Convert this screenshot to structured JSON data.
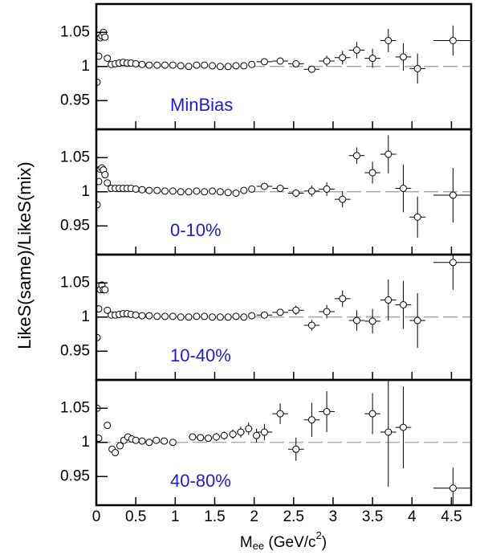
{
  "y_label": "LikeS(same)/LikeS(mix)",
  "x_label_parts": [
    "M",
    "ee",
    " (GeV/c",
    "2",
    ")"
  ],
  "chart_data": [
    {
      "type": "scatter",
      "label": "MinBias",
      "color": "#000000",
      "label_color": "#1a1ae6",
      "xlim": [
        0,
        4.75
      ],
      "ylim": [
        0.908,
        1.0915
      ],
      "yticks": [
        0.95,
        1,
        1.05
      ],
      "xticks": [
        0,
        0.5,
        1,
        1.5,
        2,
        2.5,
        3,
        3.5,
        4,
        4.5
      ],
      "xtick_labels": false,
      "reference_line": 1,
      "x": [
        0.01,
        0.03,
        0.05,
        0.07,
        0.09,
        0.11,
        0.14,
        0.19,
        0.24,
        0.29,
        0.34,
        0.39,
        0.44,
        0.5,
        0.58,
        0.67,
        0.77,
        0.87,
        0.97,
        1.07,
        1.17,
        1.27,
        1.37,
        1.47,
        1.57,
        1.67,
        1.77,
        1.87,
        1.97,
        2.13,
        2.33,
        2.53,
        2.73,
        2.92,
        3.12,
        3.3,
        3.5,
        3.7,
        3.89,
        4.07,
        4.52
      ],
      "values": [
        0.977,
        1.015,
        1.042,
        1.045,
        1.05,
        1.043,
        1.012,
        1.003,
        1.004,
        1.005,
        1.006,
        1.005,
        1.005,
        1.004,
        1.003,
        1.002,
        1.002,
        1.002,
        1.002,
        1.001,
        1.0,
        1.002,
        1.002,
        1.001,
        1.0,
        1.0,
        1.001,
        1.001,
        1.003,
        1.007,
        1.008,
        1.004,
        0.996,
        1.008,
        1.013,
        1.024,
        1.012,
        1.038,
        1.014,
        0.997,
        1.038
      ],
      "yerr": [
        0.001,
        0.001,
        0.001,
        0.001,
        0.001,
        0.001,
        0.001,
        0.001,
        0.001,
        0.001,
        0.001,
        0.001,
        0.001,
        0.001,
        0.001,
        0.001,
        0.001,
        0.001,
        0.001,
        0.001,
        0.001,
        0.001,
        0.001,
        0.001,
        0.001,
        0.001,
        0.001,
        0.001,
        0.001,
        0.003,
        0.003,
        0.004,
        0.005,
        0.008,
        0.01,
        0.012,
        0.014,
        0.017,
        0.02,
        0.022,
        0.022
      ],
      "xerr": [
        0,
        0,
        0,
        0,
        0,
        0,
        0,
        0,
        0,
        0,
        0,
        0,
        0,
        0,
        0,
        0,
        0,
        0,
        0,
        0,
        0,
        0,
        0,
        0,
        0,
        0,
        0,
        0,
        0,
        0.1,
        0.1,
        0.1,
        0.1,
        0.1,
        0.1,
        0.1,
        0.1,
        0.1,
        0.1,
        0.1,
        0.25
      ]
    },
    {
      "type": "scatter",
      "label": "0-10%",
      "color": "#000000",
      "label_color": "#1a1ae6",
      "xlim": [
        0,
        4.75
      ],
      "ylim": [
        0.908,
        1.0915
      ],
      "yticks": [
        0.95,
        1,
        1.05
      ],
      "xticks": [
        0,
        0.5,
        1,
        1.5,
        2,
        2.5,
        3,
        3.5,
        4,
        4.5
      ],
      "xtick_labels": false,
      "reference_line": 1,
      "x": [
        0.01,
        0.03,
        0.05,
        0.07,
        0.09,
        0.11,
        0.14,
        0.19,
        0.24,
        0.29,
        0.34,
        0.39,
        0.44,
        0.5,
        0.58,
        0.67,
        0.77,
        0.87,
        0.97,
        1.07,
        1.17,
        1.27,
        1.37,
        1.47,
        1.57,
        1.67,
        1.77,
        1.87,
        1.97,
        2.13,
        2.33,
        2.53,
        2.73,
        2.92,
        3.12,
        3.3,
        3.5,
        3.7,
        3.89,
        4.07,
        4.52
      ],
      "values": [
        0.981,
        1.015,
        1.033,
        1.035,
        1.032,
        1.025,
        1.013,
        1.005,
        1.005,
        1.005,
        1.005,
        1.005,
        1.005,
        1.004,
        1.003,
        1.002,
        1.002,
        1.001,
        1.001,
        1.0,
        1.0,
        1.001,
        1.0,
        1.001,
        1.0,
        0.999,
        0.998,
        1.002,
        1.004,
        1.008,
        1.005,
        0.998,
        1.001,
        1.004,
        0.989,
        1.053,
        1.028,
        1.055,
        1.005,
        0.963,
        0.995
      ],
      "yerr": [
        0.001,
        0.001,
        0.001,
        0.001,
        0.001,
        0.001,
        0.001,
        0.001,
        0.001,
        0.001,
        0.001,
        0.001,
        0.001,
        0.001,
        0.001,
        0.001,
        0.001,
        0.001,
        0.001,
        0.001,
        0.001,
        0.001,
        0.001,
        0.001,
        0.001,
        0.001,
        0.001,
        0.001,
        0.001,
        0.003,
        0.004,
        0.006,
        0.008,
        0.01,
        0.012,
        0.012,
        0.016,
        0.028,
        0.035,
        0.03,
        0.04
      ],
      "xerr": [
        0,
        0,
        0,
        0,
        0,
        0,
        0,
        0,
        0,
        0,
        0,
        0,
        0,
        0,
        0,
        0,
        0,
        0,
        0,
        0,
        0,
        0,
        0,
        0,
        0,
        0,
        0,
        0,
        0,
        0.1,
        0.1,
        0.1,
        0.1,
        0.1,
        0.1,
        0.1,
        0.1,
        0.1,
        0.1,
        0.1,
        0.25
      ]
    },
    {
      "type": "scatter",
      "label": "10-40%",
      "color": "#000000",
      "label_color": "#1a1ae6",
      "xlim": [
        0,
        4.75
      ],
      "ylim": [
        0.908,
        1.0915
      ],
      "yticks": [
        0.95,
        1,
        1.05
      ],
      "xticks": [
        0,
        0.5,
        1,
        1.5,
        2,
        2.5,
        3,
        3.5,
        4,
        4.5
      ],
      "xtick_labels": false,
      "reference_line": 1,
      "x": [
        0.01,
        0.03,
        0.05,
        0.07,
        0.09,
        0.11,
        0.14,
        0.19,
        0.24,
        0.29,
        0.34,
        0.39,
        0.44,
        0.5,
        0.58,
        0.67,
        0.77,
        0.87,
        0.97,
        1.07,
        1.17,
        1.27,
        1.37,
        1.47,
        1.57,
        1.67,
        1.77,
        1.87,
        1.97,
        2.13,
        2.33,
        2.53,
        2.73,
        2.92,
        3.12,
        3.3,
        3.5,
        3.7,
        3.89,
        4.07,
        4.52
      ],
      "values": [
        0.97,
        1.012,
        1.04,
        1.047,
        1.04,
        1.04,
        1.01,
        1.003,
        1.003,
        1.004,
        1.005,
        1.005,
        1.004,
        1.003,
        1.002,
        1.002,
        1.001,
        1.001,
        1.001,
        1.0,
        1.0,
        1.001,
        1.001,
        1.0,
        1.0,
        1.0,
        1.001,
        1.0,
        1.002,
        1.003,
        1.007,
        1.01,
        0.988,
        1.008,
        1.027,
        0.995,
        0.994,
        1.025,
        1.018,
        0.995,
        1.08
      ],
      "yerr": [
        0.001,
        0.001,
        0.001,
        0.001,
        0.001,
        0.001,
        0.001,
        0.001,
        0.001,
        0.001,
        0.001,
        0.001,
        0.001,
        0.001,
        0.001,
        0.001,
        0.001,
        0.001,
        0.001,
        0.001,
        0.001,
        0.001,
        0.001,
        0.001,
        0.001,
        0.001,
        0.001,
        0.001,
        0.001,
        0.003,
        0.005,
        0.007,
        0.008,
        0.01,
        0.012,
        0.015,
        0.018,
        0.03,
        0.035,
        0.04,
        0.04
      ],
      "xerr": [
        0,
        0,
        0,
        0,
        0,
        0,
        0,
        0,
        0,
        0,
        0,
        0,
        0,
        0,
        0,
        0,
        0,
        0,
        0,
        0,
        0,
        0,
        0,
        0,
        0,
        0,
        0,
        0,
        0,
        0.1,
        0.1,
        0.1,
        0.1,
        0.1,
        0.1,
        0.1,
        0.1,
        0.1,
        0.1,
        0.1,
        0.25
      ]
    },
    {
      "type": "scatter",
      "label": "40-80%",
      "color": "#000000",
      "label_color": "#1a1ae6",
      "xlim": [
        0,
        4.75
      ],
      "ylim": [
        0.908,
        1.0915
      ],
      "yticks": [
        0.95,
        1,
        1.05
      ],
      "xticks": [
        0,
        0.5,
        1,
        1.5,
        2,
        2.5,
        3,
        3.5,
        4,
        4.5
      ],
      "xtick_labels": true,
      "reference_line": 1,
      "x": [
        0.01,
        0.03,
        0.14,
        0.2,
        0.24,
        0.3,
        0.35,
        0.4,
        0.45,
        0.5,
        0.58,
        0.67,
        0.76,
        0.86,
        0.97,
        1.22,
        1.32,
        1.42,
        1.52,
        1.62,
        1.73,
        1.83,
        1.93,
        2.03,
        2.13,
        2.33,
        2.53,
        2.73,
        2.92,
        3.5,
        3.7,
        3.89,
        4.52
      ],
      "values": [
        1.05,
        1.006,
        1.025,
        0.99,
        0.985,
        0.995,
        1.003,
        1.008,
        1.005,
        1.003,
        1.002,
        1.0,
        1.003,
        1.002,
        1.0,
        1.008,
        1.007,
        1.006,
        1.008,
        1.01,
        1.012,
        1.015,
        1.02,
        1.01,
        1.015,
        1.042,
        0.99,
        1.033,
        1.045,
        1.042,
        1.015,
        1.022,
        0.933
      ],
      "yerr": [
        0.002,
        0.002,
        0.002,
        0.002,
        0.002,
        0.002,
        0.002,
        0.002,
        0.002,
        0.002,
        0.002,
        0.002,
        0.002,
        0.002,
        0.002,
        0.004,
        0.004,
        0.005,
        0.006,
        0.006,
        0.007,
        0.008,
        0.009,
        0.01,
        0.012,
        0.015,
        0.017,
        0.025,
        0.03,
        0.03,
        0.08,
        0.06,
        0.03
      ],
      "xerr": [
        0,
        0,
        0,
        0,
        0,
        0,
        0,
        0,
        0,
        0,
        0,
        0,
        0,
        0,
        0,
        0.05,
        0.05,
        0.05,
        0.05,
        0.05,
        0.05,
        0.05,
        0.05,
        0.05,
        0.1,
        0.1,
        0.1,
        0.1,
        0.1,
        0.1,
        0.1,
        0.1,
        0.25
      ]
    }
  ]
}
